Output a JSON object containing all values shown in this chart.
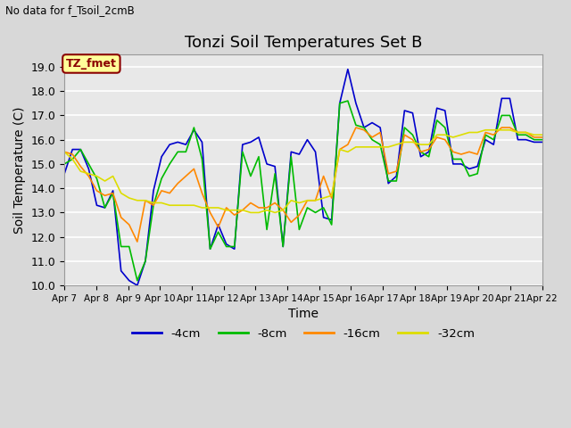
{
  "title": "Tonzi Soil Temperatures Set B",
  "xlabel": "Time",
  "ylabel": "Soil Temperature (C)",
  "top_left_text": "No data for f_Tsoil_2cmB",
  "annotation_box_text": "TZ_fmet",
  "annotation_box_color": "#ffff99",
  "annotation_box_edge_color": "#8b0000",
  "annotation_text_color": "#8b0000",
  "ylim": [
    10.0,
    19.5
  ],
  "yticks": [
    10.0,
    11.0,
    12.0,
    13.0,
    14.0,
    15.0,
    16.0,
    17.0,
    18.0,
    19.0
  ],
  "background_color": "#d8d8d8",
  "axes_background_color": "#d8d8d8",
  "plot_bg_color": "#e8e8e8",
  "grid_color": "#ffffff",
  "line_colors": [
    "#0000cc",
    "#00bb00",
    "#ff8800",
    "#dddd00"
  ],
  "line_labels": [
    "-4cm",
    "-8cm",
    "-16cm",
    "-32cm"
  ],
  "x_ticklabels": [
    "Apr 7",
    "Apr 8",
    "Apr 9",
    "Apr 10",
    "Apr 11",
    "Apr 12",
    "Apr 13",
    "Apr 14",
    "Apr 15",
    "Apr 16",
    "Apr 17",
    "Apr 18",
    "Apr 19",
    "Apr 20",
    "Apr 21",
    "Apr 22"
  ],
  "series_4cm": [
    14.6,
    15.6,
    15.6,
    14.8,
    13.3,
    13.2,
    13.9,
    10.6,
    10.2,
    10.0,
    11.0,
    13.9,
    15.3,
    15.8,
    15.9,
    15.8,
    16.4,
    15.9,
    11.5,
    12.5,
    11.7,
    11.5,
    15.8,
    15.9,
    16.1,
    15.0,
    14.9,
    11.6,
    15.5,
    15.4,
    16.0,
    15.5,
    12.8,
    12.7,
    17.5,
    18.9,
    17.5,
    16.5,
    16.7,
    16.5,
    14.2,
    14.5,
    17.2,
    17.1,
    15.3,
    15.5,
    17.3,
    17.2,
    15.0,
    15.0,
    14.8,
    14.9,
    16.0,
    15.8,
    17.7,
    17.7,
    16.0,
    16.0,
    15.9,
    15.9
  ],
  "series_8cm": [
    15.0,
    15.2,
    15.6,
    15.0,
    14.4,
    13.2,
    13.8,
    11.6,
    11.6,
    10.2,
    11.0,
    13.3,
    14.4,
    15.0,
    15.5,
    15.5,
    16.5,
    15.2,
    11.5,
    12.2,
    11.6,
    11.6,
    15.5,
    14.5,
    15.3,
    12.3,
    14.6,
    11.6,
    15.3,
    12.3,
    13.2,
    13.0,
    13.2,
    12.5,
    17.5,
    17.6,
    16.6,
    16.5,
    16.0,
    15.8,
    14.3,
    14.3,
    16.5,
    16.2,
    15.5,
    15.3,
    16.8,
    16.5,
    15.2,
    15.2,
    14.5,
    14.6,
    16.2,
    16.0,
    17.0,
    17.0,
    16.2,
    16.2,
    16.0,
    16.0
  ],
  "series_16cm": [
    15.5,
    15.4,
    14.9,
    14.5,
    13.9,
    13.7,
    13.8,
    12.8,
    12.5,
    11.8,
    13.5,
    13.3,
    13.9,
    13.8,
    14.2,
    14.5,
    14.8,
    13.8,
    13.0,
    12.4,
    13.2,
    12.9,
    13.1,
    13.4,
    13.2,
    13.2,
    13.4,
    13.1,
    12.6,
    12.9,
    13.5,
    13.5,
    14.5,
    13.6,
    15.6,
    15.8,
    16.5,
    16.4,
    16.1,
    16.3,
    14.6,
    14.7,
    16.2,
    16.0,
    15.5,
    15.6,
    16.1,
    16.0,
    15.5,
    15.4,
    15.5,
    15.4,
    16.3,
    16.2,
    16.5,
    16.5,
    16.3,
    16.3,
    16.1,
    16.1
  ],
  "series_32cm": [
    15.5,
    15.2,
    14.7,
    14.6,
    14.5,
    14.3,
    14.5,
    13.8,
    13.6,
    13.5,
    13.5,
    13.4,
    13.4,
    13.3,
    13.3,
    13.3,
    13.3,
    13.2,
    13.2,
    13.2,
    13.1,
    13.1,
    13.1,
    13.0,
    13.0,
    13.1,
    13.0,
    13.1,
    13.5,
    13.4,
    13.5,
    13.5,
    13.6,
    13.7,
    15.6,
    15.5,
    15.7,
    15.7,
    15.7,
    15.7,
    15.7,
    15.8,
    15.9,
    15.9,
    15.8,
    15.8,
    16.2,
    16.2,
    16.1,
    16.2,
    16.3,
    16.3,
    16.4,
    16.4,
    16.4,
    16.4,
    16.3,
    16.3,
    16.2,
    16.2
  ]
}
